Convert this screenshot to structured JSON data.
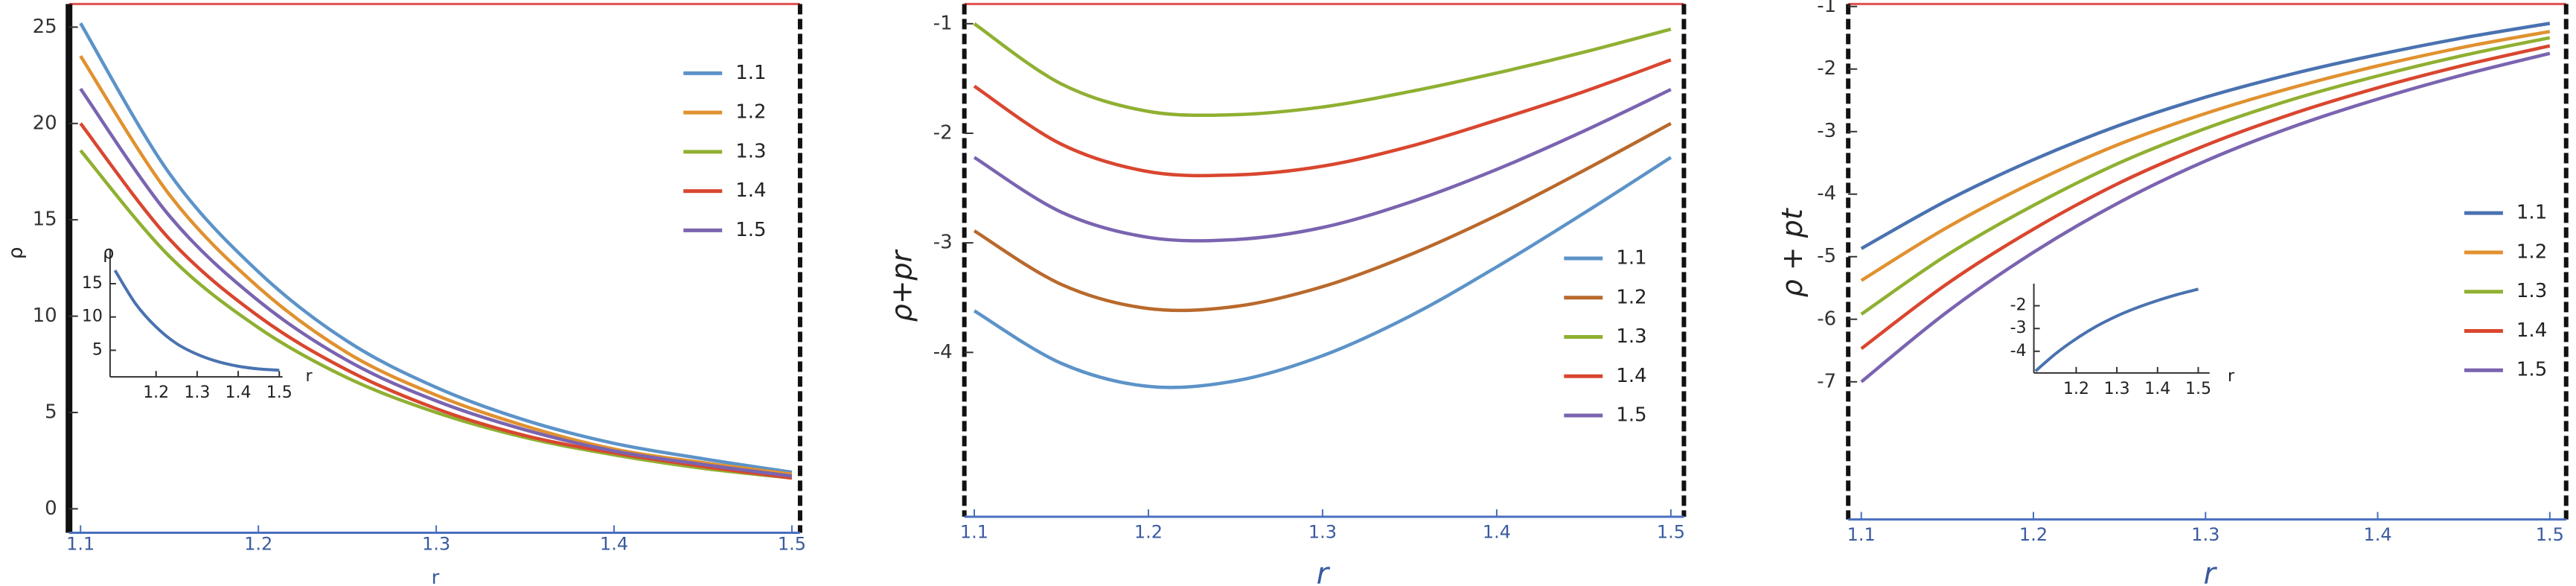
{
  "chart_data": [
    {
      "type": "line",
      "x_label": "r",
      "y_label": "ρ",
      "x": [
        1.1,
        1.15,
        1.2,
        1.25,
        1.3,
        1.35,
        1.4,
        1.45,
        1.5
      ],
      "series": [
        {
          "name": "1.1",
          "color": "#5c93c8",
          "values": [
            25.2,
            17.4,
            12.3,
            8.7,
            6.3,
            4.6,
            3.4,
            2.6,
            1.9
          ]
        },
        {
          "name": "1.2",
          "color": "#e0912f",
          "values": [
            23.5,
            16.3,
            11.5,
            8.1,
            5.9,
            4.3,
            3.1,
            2.4,
            1.8
          ]
        },
        {
          "name": "1.3",
          "color": "#8fb031",
          "values": [
            18.6,
            13.1,
            9.4,
            6.8,
            5.0,
            3.7,
            2.8,
            2.1,
            1.6
          ]
        },
        {
          "name": "1.4",
          "color": "#d9462f",
          "values": [
            20.0,
            14.0,
            10.0,
            7.2,
            5.2,
            3.8,
            2.9,
            2.2,
            1.6
          ]
        },
        {
          "name": "1.5",
          "color": "#7a64b0",
          "values": [
            21.8,
            15.2,
            10.8,
            7.7,
            5.6,
            4.1,
            3.0,
            2.3,
            1.7
          ]
        }
      ],
      "xlim": [
        1.0935,
        1.5046
      ],
      "ylim": [
        -1.24,
        26.2
      ],
      "xticks": [
        1.1,
        1.2,
        1.3,
        1.4,
        1.5
      ],
      "yticks": [
        0,
        5,
        10,
        15,
        20,
        25
      ],
      "inset": {
        "x_label": "r",
        "y_label": "ρ",
        "color": "#4a72b0",
        "x": [
          1.1,
          1.15,
          1.2,
          1.25,
          1.3,
          1.35,
          1.4,
          1.45,
          1.5
        ],
        "values": [
          17,
          12,
          8.5,
          6,
          4.4,
          3.3,
          2.6,
          2.2,
          2.0
        ],
        "xlim": [
          1.088,
          1.508
        ],
        "ylim": [
          1,
          20.2
        ],
        "xticks": [
          1.2,
          1.3,
          1.4,
          1.5
        ],
        "yticks": [
          5,
          10,
          15
        ]
      }
    },
    {
      "type": "line",
      "x_label": "r",
      "y_label": "ρ+pr",
      "x": [
        1.1,
        1.15,
        1.2,
        1.25,
        1.3,
        1.35,
        1.4,
        1.45,
        1.5
      ],
      "series": [
        {
          "name": "1.1",
          "color": "#5c93c8",
          "values": [
            -3.62,
            -4.1,
            -4.31,
            -4.26,
            -4.03,
            -3.67,
            -3.22,
            -2.73,
            -2.22
          ]
        },
        {
          "name": "1.2",
          "color": "#b9692c",
          "values": [
            -2.89,
            -3.38,
            -3.6,
            -3.58,
            -3.4,
            -3.11,
            -2.75,
            -2.34,
            -1.91
          ]
        },
        {
          "name": "1.3",
          "color": "#8fb031",
          "values": [
            -1.0,
            -1.55,
            -1.8,
            -1.83,
            -1.76,
            -1.62,
            -1.45,
            -1.26,
            -1.05
          ]
        },
        {
          "name": "1.4",
          "color": "#d9462f",
          "values": [
            -1.57,
            -2.1,
            -2.35,
            -2.38,
            -2.3,
            -2.12,
            -1.88,
            -1.62,
            -1.33
          ]
        },
        {
          "name": "1.5",
          "color": "#7a64b0",
          "values": [
            -2.22,
            -2.72,
            -2.95,
            -2.97,
            -2.86,
            -2.63,
            -2.33,
            -1.98,
            -1.6
          ]
        }
      ],
      "xlim": [
        1.0943,
        1.5075
      ],
      "ylim": [
        -5.5,
        -0.82
      ],
      "xticks": [
        1.1,
        1.2,
        1.3,
        1.4,
        1.5
      ],
      "yticks": [
        -4,
        -3,
        -2,
        -1
      ]
    },
    {
      "type": "line",
      "x_label": "r",
      "y_label": "ρ + pt",
      "x": [
        1.1,
        1.15,
        1.2,
        1.25,
        1.3,
        1.35,
        1.4,
        1.45,
        1.5
      ],
      "series": [
        {
          "name": "1.1",
          "color": "#4a72b0",
          "values": [
            -4.87,
            -4.1,
            -3.45,
            -2.9,
            -2.45,
            -2.08,
            -1.77,
            -1.5,
            -1.27
          ]
        },
        {
          "name": "1.2",
          "color": "#e0912f",
          "values": [
            -5.38,
            -4.53,
            -3.81,
            -3.2,
            -2.71,
            -2.3,
            -1.95,
            -1.65,
            -1.4
          ]
        },
        {
          "name": "1.3",
          "color": "#8fb031",
          "values": [
            -5.92,
            -4.97,
            -4.18,
            -3.5,
            -2.95,
            -2.49,
            -2.11,
            -1.78,
            -1.5
          ]
        },
        {
          "name": "1.4",
          "color": "#d9462f",
          "values": [
            -6.47,
            -5.43,
            -4.56,
            -3.82,
            -3.22,
            -2.72,
            -2.3,
            -1.94,
            -1.63
          ]
        },
        {
          "name": "1.5",
          "color": "#7a64b0",
          "values": [
            -7.0,
            -5.88,
            -4.93,
            -4.13,
            -3.47,
            -2.93,
            -2.48,
            -2.09,
            -1.75
          ]
        }
      ],
      "xlim": [
        1.0924,
        1.5095
      ],
      "ylim": [
        -9.2,
        -0.96
      ],
      "xticks": [
        1.1,
        1.2,
        1.3,
        1.4,
        1.5
      ],
      "yticks": [
        -7,
        -6,
        -5,
        -4,
        -3,
        -2,
        -1
      ],
      "inset": {
        "x_label": "r",
        "color": "#4a72b0",
        "x": [
          1.1,
          1.15,
          1.2,
          1.25,
          1.3,
          1.35,
          1.4,
          1.45,
          1.5
        ],
        "values": [
          -4.87,
          -4.1,
          -3.45,
          -2.9,
          -2.45,
          -2.08,
          -1.77,
          -1.5,
          -1.27
        ],
        "xlim": [
          1.096,
          1.528
        ],
        "ylim": [
          -4.95,
          -1.03
        ],
        "xticks": [
          1.2,
          1.3,
          1.4,
          1.5
        ],
        "yticks": [
          -4,
          -3,
          -2
        ]
      }
    }
  ]
}
